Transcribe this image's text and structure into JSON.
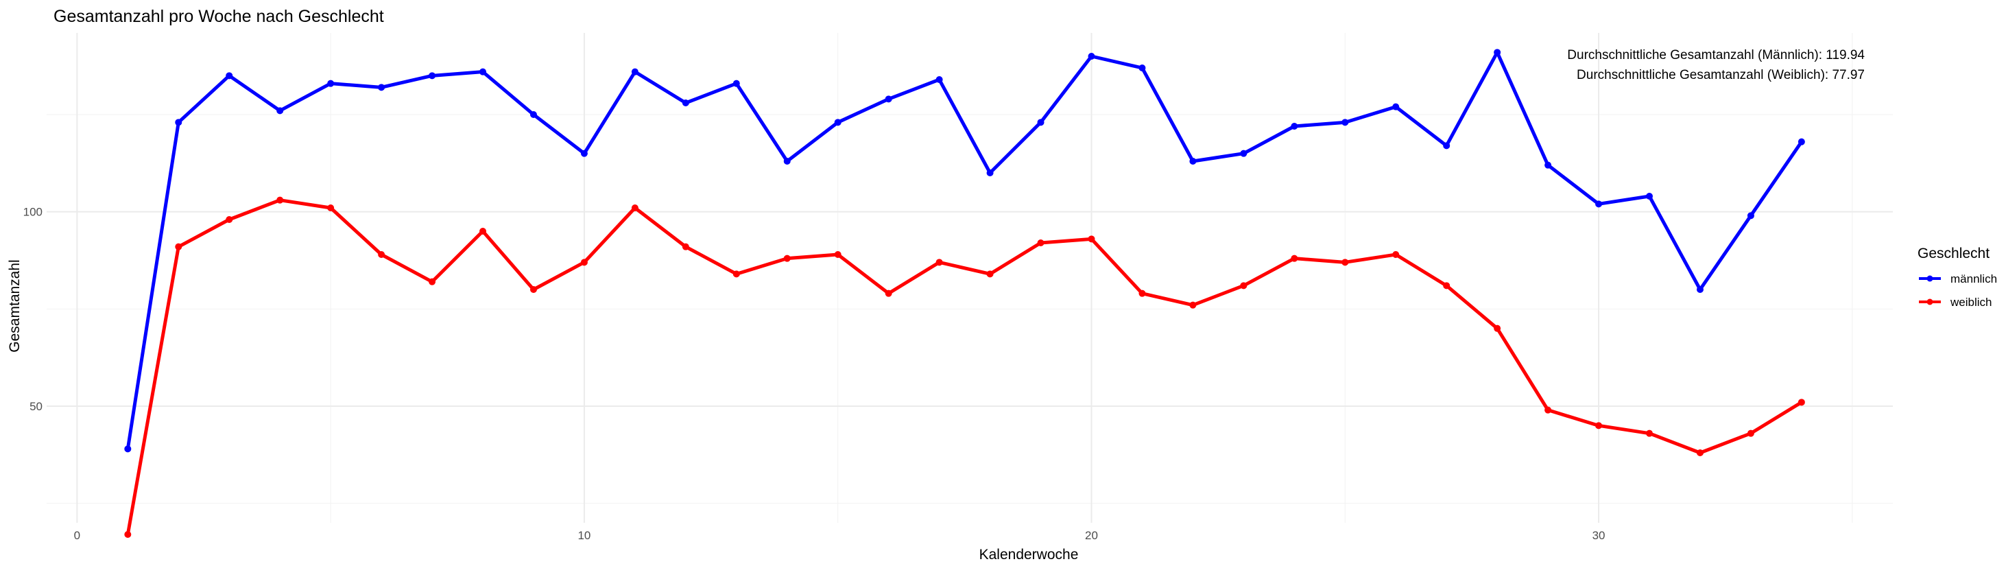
{
  "chart_data": {
    "type": "line",
    "title": "Gesamtanzahl pro Woche nach Geschlecht",
    "xlabel": "Kalenderwoche",
    "ylabel": "Gesamtanzahl",
    "xlim": [
      -0.6,
      35.8
    ],
    "ylim": [
      20.0,
      146.0
    ],
    "x_ticks": [
      0,
      10,
      20,
      30
    ],
    "y_ticks": [
      50,
      100
    ],
    "grid": true,
    "legend_placement": "right",
    "legend_title": "Geschlecht",
    "x": [
      1,
      2,
      3,
      4,
      5,
      6,
      7,
      8,
      9,
      10,
      11,
      12,
      13,
      14,
      15,
      16,
      17,
      18,
      19,
      20,
      21,
      22,
      23,
      24,
      25,
      26,
      27,
      28,
      29,
      30,
      31,
      32,
      33,
      34
    ],
    "series": [
      {
        "name": "männlich",
        "color": "#0000ff",
        "values": [
          39,
          123,
          135,
          126,
          133,
          132,
          135,
          136,
          125,
          115,
          136,
          128,
          133,
          113,
          123,
          129,
          134,
          110,
          123,
          140,
          137,
          113,
          115,
          122,
          123,
          127,
          117,
          141,
          112,
          102,
          104,
          80,
          99,
          118
        ]
      },
      {
        "name": "weiblich",
        "color": "#ff0000",
        "values": [
          17,
          91,
          98,
          103,
          101,
          89,
          82,
          95,
          80,
          87,
          101,
          91,
          84,
          88,
          89,
          79,
          87,
          84,
          92,
          93,
          79,
          76,
          81,
          88,
          87,
          89,
          81,
          70,
          49,
          45,
          43,
          38,
          43,
          51
        ]
      }
    ],
    "annotations": [
      "Durchschnittliche Gesamtanzahl (Männlich): 119.94",
      "Durchschnittliche Gesamtanzahl (Weiblich): 77.97"
    ]
  }
}
